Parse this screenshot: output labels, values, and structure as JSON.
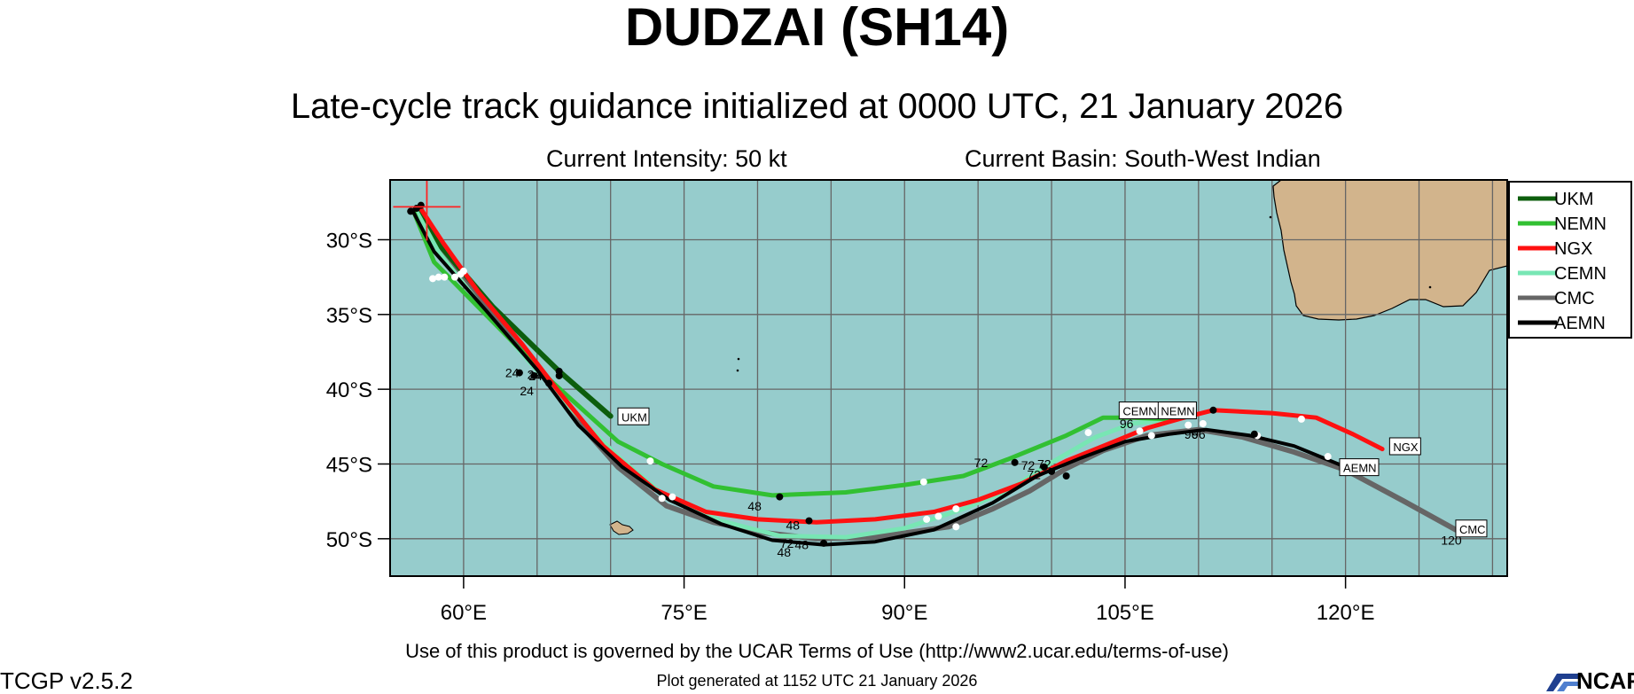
{
  "header": {
    "title": "DUDZAI (SH14)",
    "subtitle": "Late-cycle track guidance initialized at 0000 UTC, 21 January 2026",
    "intensity": "Current Intensity: 50 kt",
    "basin": "Current Basin: South-West Indian"
  },
  "footer": {
    "terms": "Use of this product is governed by the UCAR Terms of Use (http://www2.ucar.edu/terms-of-use)",
    "generated": "Plot generated at 1152 UTC   21 January 2026",
    "version": "TCGP v2.5.2",
    "logo_text": "NCAR"
  },
  "chart_data": {
    "type": "line",
    "projection": "lat-lon map",
    "xlim": [
      55,
      131
    ],
    "ylim": [
      -52.5,
      -26
    ],
    "x_ticks": [
      60,
      75,
      90,
      105,
      120
    ],
    "x_tick_labels": [
      "60°E",
      "75°E",
      "90°E",
      "105°E",
      "120°E"
    ],
    "y_ticks": [
      -30,
      -35,
      -40,
      -45,
      -50
    ],
    "y_tick_labels": [
      "30°S",
      "35°S",
      "40°S",
      "45°S",
      "50°S"
    ],
    "grid": true,
    "ocean_color": "#96cccc",
    "land_color": "#d2b48c",
    "current_position": {
      "lon": 57.5,
      "lat": -27.8
    },
    "legend_position": "right",
    "series": [
      {
        "name": "UKM",
        "color": "#0d5e0d",
        "width": 6,
        "points": [
          [
            57.0,
            -27.8
          ],
          [
            58.5,
            -30.5
          ],
          [
            62,
            -34.5
          ],
          [
            66.5,
            -38.8
          ],
          [
            70.0,
            -41.8
          ]
        ],
        "end_label": "UKM",
        "end_label_pos": [
          70.5,
          -42.2
        ],
        "tau_labels": []
      },
      {
        "name": "NEMN",
        "color": "#32c032",
        "width": 5,
        "points": [
          [
            56.6,
            -28.1
          ],
          [
            58,
            -31.5
          ],
          [
            62,
            -35.5
          ],
          [
            66,
            -39.5
          ],
          [
            70.5,
            -43.5
          ],
          [
            73.5,
            -45
          ],
          [
            77,
            -46.5
          ],
          [
            81,
            -47.1
          ],
          [
            86,
            -46.9
          ],
          [
            90,
            -46.4
          ],
          [
            94,
            -45.8
          ],
          [
            97,
            -44.7
          ],
          [
            101,
            -43.1
          ],
          [
            103.5,
            -41.9
          ],
          [
            105.5,
            -41.9
          ],
          [
            108,
            -42.0
          ]
        ],
        "end_label": "NEMN",
        "end_label_pos": [
          107.2,
          -41.8
        ],
        "tau_labels": [
          {
            "text": "48",
            "lon": 79.8,
            "lat": -48.1
          },
          {
            "text": "72",
            "lon": 95.2,
            "lat": -45.2
          },
          {
            "text": "96",
            "lon": 108.9,
            "lat": -41.9
          }
        ]
      },
      {
        "name": "NGX",
        "color": "#ff1111",
        "width": 5,
        "points": [
          [
            57.0,
            -27.8
          ],
          [
            58.6,
            -30.2
          ],
          [
            61,
            -33.5
          ],
          [
            64,
            -37
          ],
          [
            66.5,
            -40.2
          ],
          [
            69.5,
            -43.8
          ],
          [
            73,
            -46.7
          ],
          [
            76.5,
            -48.2
          ],
          [
            80,
            -48.7
          ],
          [
            84,
            -48.9
          ],
          [
            88,
            -48.7
          ],
          [
            92,
            -48.2
          ],
          [
            95,
            -47.4
          ],
          [
            98,
            -46.3
          ],
          [
            101,
            -44.8
          ],
          [
            104,
            -43.6
          ],
          [
            106.5,
            -42.6
          ],
          [
            109,
            -41.9
          ],
          [
            111,
            -41.4
          ],
          [
            115,
            -41.6
          ],
          [
            118,
            -41.9
          ],
          [
            120.5,
            -43.0
          ],
          [
            122.5,
            -44.0
          ]
        ],
        "end_label": "NGX",
        "end_label_pos": [
          123.0,
          -44.2
        ],
        "tau_labels": [
          {
            "text": "48",
            "lon": 82.4,
            "lat": -49.4
          },
          {
            "text": "72",
            "lon": 98.4,
            "lat": -45.4
          },
          {
            "text": "24",
            "lon": 64.9,
            "lat": -39.4
          },
          {
            "text": "24",
            "lon": 64.3,
            "lat": -40.4
          }
        ]
      },
      {
        "name": "CEMN",
        "color": "#78e6b4",
        "width": 5,
        "points": [
          [
            56.8,
            -28.0
          ],
          [
            58.3,
            -30.8
          ],
          [
            61,
            -34.2
          ],
          [
            64.5,
            -38.2
          ],
          [
            67.5,
            -41.5
          ],
          [
            70.5,
            -44.5
          ],
          [
            73.5,
            -47.0
          ],
          [
            77.5,
            -48.8
          ],
          [
            81.5,
            -49.8
          ],
          [
            86,
            -49.9
          ],
          [
            90,
            -49.3
          ],
          [
            94,
            -48.0
          ],
          [
            97,
            -46.8
          ],
          [
            100,
            -44.9
          ],
          [
            103,
            -43.2
          ],
          [
            105.5,
            -42.3
          ],
          [
            107.5,
            -42.1
          ]
        ],
        "end_label": "CEMN",
        "end_label_pos": [
          104.6,
          -41.8
        ],
        "tau_labels": [
          {
            "text": "96",
            "lon": 105.1,
            "lat": -42.6
          }
        ]
      },
      {
        "name": "CMC",
        "color": "#666666",
        "width": 6,
        "points": [
          [
            56.9,
            -27.9
          ],
          [
            58.5,
            -30.8
          ],
          [
            61.5,
            -34.4
          ],
          [
            65,
            -38.6
          ],
          [
            67.8,
            -42.2
          ],
          [
            70.5,
            -45.2
          ],
          [
            73.8,
            -47.8
          ],
          [
            77,
            -48.9
          ],
          [
            80.5,
            -49.6
          ],
          [
            84,
            -50.0
          ],
          [
            88,
            -49.9
          ],
          [
            93,
            -49.2
          ],
          [
            96,
            -48.0
          ],
          [
            98.5,
            -46.8
          ],
          [
            101,
            -45.3
          ],
          [
            103.5,
            -44.1
          ],
          [
            106.5,
            -43.1
          ],
          [
            110,
            -42.7
          ],
          [
            113,
            -43.2
          ],
          [
            116.5,
            -44.2
          ],
          [
            120,
            -45.4
          ],
          [
            124,
            -47.5
          ],
          [
            127.5,
            -49.4
          ]
        ],
        "end_label": "CMC",
        "end_label_pos": [
          127.5,
          -49.7
        ],
        "tau_labels": [
          {
            "text": "72",
            "lon": 98.8,
            "lat": -46.0
          },
          {
            "text": "96",
            "lon": 110.0,
            "lat": -43.3
          },
          {
            "text": "120",
            "lon": 127.2,
            "lat": -50.4
          }
        ]
      },
      {
        "name": "AEMN",
        "color": "#000000",
        "width": 4,
        "points": [
          [
            56.5,
            -28.0
          ],
          [
            58.0,
            -30.8
          ],
          [
            61.5,
            -34.7
          ],
          [
            65,
            -38.7
          ],
          [
            67.8,
            -42.4
          ],
          [
            70.8,
            -45.2
          ],
          [
            74,
            -47.4
          ],
          [
            77.5,
            -49.0
          ],
          [
            81,
            -50.1
          ],
          [
            84.5,
            -50.4
          ],
          [
            88,
            -50.2
          ],
          [
            92,
            -49.4
          ],
          [
            96,
            -47.6
          ],
          [
            99,
            -45.8
          ],
          [
            102,
            -44.6
          ],
          [
            105,
            -43.5
          ],
          [
            108,
            -43.0
          ],
          [
            110.5,
            -42.7
          ],
          [
            113.5,
            -43.1
          ],
          [
            116.5,
            -43.8
          ],
          [
            119.5,
            -45.0
          ],
          [
            121,
            -45.6
          ]
        ],
        "end_label": "AEMN",
        "end_label_pos": [
          119.6,
          -45.6
        ],
        "tau_labels": [
          {
            "text": "48",
            "lon": 81.8,
            "lat": -51.2
          },
          {
            "text": "72",
            "lon": 82.0,
            "lat": -50.6
          },
          {
            "text": "48",
            "lon": 83.0,
            "lat": -50.7
          },
          {
            "text": "24",
            "lon": 63.3,
            "lat": -39.2
          },
          {
            "text": "24",
            "lon": 64.8,
            "lat": -39.3
          },
          {
            "text": "72",
            "lon": 99.5,
            "lat": -45.3
          },
          {
            "text": "96",
            "lon": 109.5,
            "lat": -43.3
          },
          {
            "text": "120",
            "lon": 121.6,
            "lat": -45.6
          }
        ]
      }
    ],
    "black_markers": [
      [
        57.1,
        -27.7
      ],
      [
        56.4,
        -28.1
      ],
      [
        56.8,
        -27.9
      ],
      [
        63.8,
        -38.9
      ],
      [
        64.8,
        -39.1
      ],
      [
        65.8,
        -39.6
      ],
      [
        66.5,
        -39.1
      ],
      [
        66.5,
        -38.8
      ],
      [
        81.5,
        -47.2
      ],
      [
        83.5,
        -48.8
      ],
      [
        84.5,
        -50.3
      ],
      [
        97.5,
        -44.9
      ],
      [
        99.5,
        -45.2
      ],
      [
        100,
        -45.5
      ],
      [
        101,
        -45.8
      ],
      [
        111,
        -41.4
      ],
      [
        113.8,
        -43.0
      ]
    ],
    "white_markers": [
      [
        59.8,
        -32.3
      ],
      [
        59.4,
        -32.5
      ],
      [
        58.7,
        -32.5
      ],
      [
        58.3,
        -32.5
      ],
      [
        57.9,
        -32.6
      ],
      [
        60.0,
        -32.1
      ],
      [
        73.5,
        -47.3
      ],
      [
        74.2,
        -47.2
      ],
      [
        72.7,
        -44.8
      ],
      [
        91.3,
        -46.2
      ],
      [
        92.3,
        -48.5
      ],
      [
        91.5,
        -48.7
      ],
      [
        93.5,
        -49.2
      ],
      [
        93.5,
        -48.0
      ],
      [
        102.5,
        -42.9
      ],
      [
        106,
        -42.8
      ],
      [
        106.8,
        -43.1
      ],
      [
        109.3,
        -42.4
      ],
      [
        110.3,
        -42.3
      ],
      [
        117,
        -42.0
      ],
      [
        118.8,
        -44.5
      ],
      [
        120.2,
        -45.3
      ],
      [
        114,
        -43.1
      ]
    ]
  }
}
